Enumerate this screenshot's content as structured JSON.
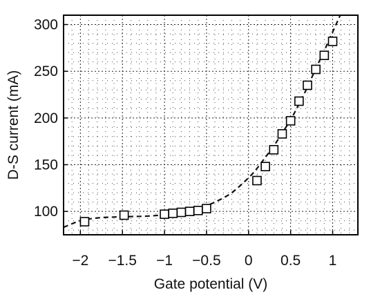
{
  "chart_data": {
    "type": "scatter",
    "xlabel": "Gate potential (V)",
    "ylabel": "D-S current (mA)",
    "xlim": [
      -2.2,
      1.3
    ],
    "ylim": [
      75,
      310
    ],
    "xticks": [
      -2,
      -1.5,
      -1,
      -0.5,
      0,
      0.5,
      1
    ],
    "xtick_labels": [
      "−2",
      "−1.5",
      "−1",
      "−0.5",
      "0",
      "0.5",
      "1"
    ],
    "yticks": [
      100,
      150,
      200,
      250,
      300
    ],
    "ytick_labels": [
      "100",
      "150",
      "200",
      "250",
      "300"
    ],
    "grid": true,
    "series": [
      {
        "marker": "square",
        "x": [
          -1.95,
          -1.48,
          -1.0,
          -0.9,
          -0.8,
          -0.7,
          -0.6,
          -0.5,
          0.1,
          0.2,
          0.3,
          0.4,
          0.5,
          0.6,
          0.7,
          0.8,
          0.9,
          1.0
        ],
        "y": [
          89,
          96,
          97,
          98,
          99,
          100,
          101,
          103,
          133,
          148,
          166,
          183,
          197,
          218,
          235,
          252,
          267,
          282
        ]
      }
    ],
    "fit_line": {
      "style": "dashed",
      "x": [
        -2.2,
        -2.0,
        -1.8,
        -1.6,
        -1.4,
        -1.2,
        -1.0,
        -0.8,
        -0.6,
        -0.4,
        -0.2,
        0.0,
        0.1,
        0.2,
        0.3,
        0.4,
        0.5,
        0.6,
        0.7,
        0.8,
        0.9,
        1.0,
        1.1
      ],
      "y": [
        83,
        90,
        93,
        94,
        94.5,
        95,
        96.5,
        99,
        103,
        110,
        120,
        136,
        146,
        158,
        170,
        184,
        198,
        215,
        233,
        253,
        272,
        292,
        312
      ]
    }
  }
}
